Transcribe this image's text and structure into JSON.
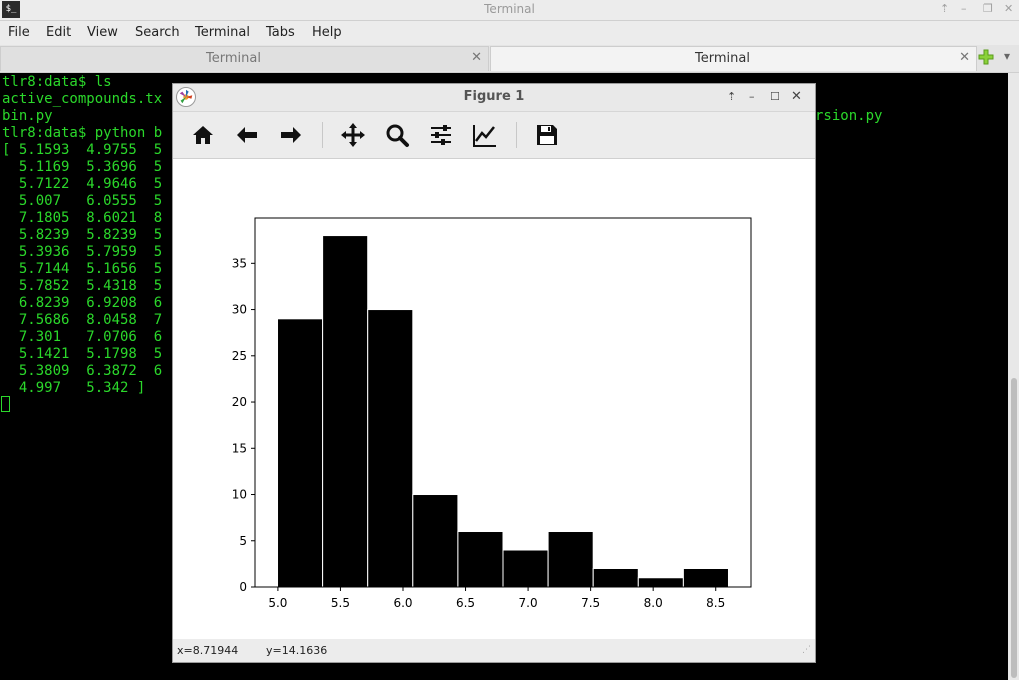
{
  "window": {
    "title": "Terminal",
    "app_icon": "terminal-icon"
  },
  "menubar": [
    "File",
    "Edit",
    "View",
    "Search",
    "Terminal",
    "Tabs",
    "Help"
  ],
  "tabs": [
    {
      "label": "Terminal",
      "active": false
    },
    {
      "label": "Terminal",
      "active": true
    }
  ],
  "terminal": {
    "lines": [
      "tlr8:data$ ls",
      "active_compounds.tx",
      "bin.py",
      "tlr8:data$ python b",
      "[ 5.1593  4.9755  5",
      "  5.1169  5.3696  5",
      "  5.7122  4.9646  5",
      "  5.007   6.0555  5",
      "  7.1805  8.6021  8",
      "  5.8239  5.8239  5",
      "  5.3936  5.7959  5",
      "  5.7144  5.1656  5",
      "  5.7852  5.4318  5",
      "  6.8239  6.9208  6",
      "  7.5686  8.0458  7",
      "  7.301   7.0706  6",
      "  5.1421  5.1798  5",
      "  5.3809  6.3872  6",
      "  4.997   5.342 ]"
    ],
    "right_fragment": "rsion.py"
  },
  "figure": {
    "title": "Figure 1",
    "toolbar": [
      "home-icon",
      "back-arrow-icon",
      "forward-arrow-icon",
      "pan-icon",
      "zoom-icon",
      "configure-subplots-icon",
      "edit-axis-icon",
      "save-icon"
    ],
    "status": {
      "x": "x=8.71944",
      "y": "y=14.1636"
    }
  },
  "colors": {
    "terminal_text": "#2bd82b",
    "terminal_bg": "#000000",
    "bar_fill": "#000000"
  },
  "chart_data": {
    "type": "bar",
    "bin_edges": [
      4.997,
      5.3575,
      5.718,
      6.0785,
      6.439,
      6.7995,
      7.16,
      7.5205,
      7.881,
      8.2415,
      8.602
    ],
    "values": [
      29,
      38,
      30,
      10,
      6,
      4,
      6,
      2,
      1,
      2
    ],
    "xlim": [
      4.817,
      8.782
    ],
    "ylim": [
      0,
      39.9
    ],
    "xticks": [
      5.0,
      5.5,
      6.0,
      6.5,
      7.0,
      7.5,
      8.0,
      8.5
    ],
    "xtick_labels": [
      "5.0",
      "5.5",
      "6.0",
      "6.5",
      "7.0",
      "7.5",
      "8.0",
      "8.5"
    ],
    "yticks": [
      0,
      5,
      10,
      15,
      20,
      25,
      30,
      35
    ],
    "ytick_labels": [
      "0",
      "5",
      "10",
      "15",
      "20",
      "25",
      "30",
      "35"
    ],
    "title": "",
    "xlabel": "",
    "ylabel": "",
    "grid": false
  }
}
